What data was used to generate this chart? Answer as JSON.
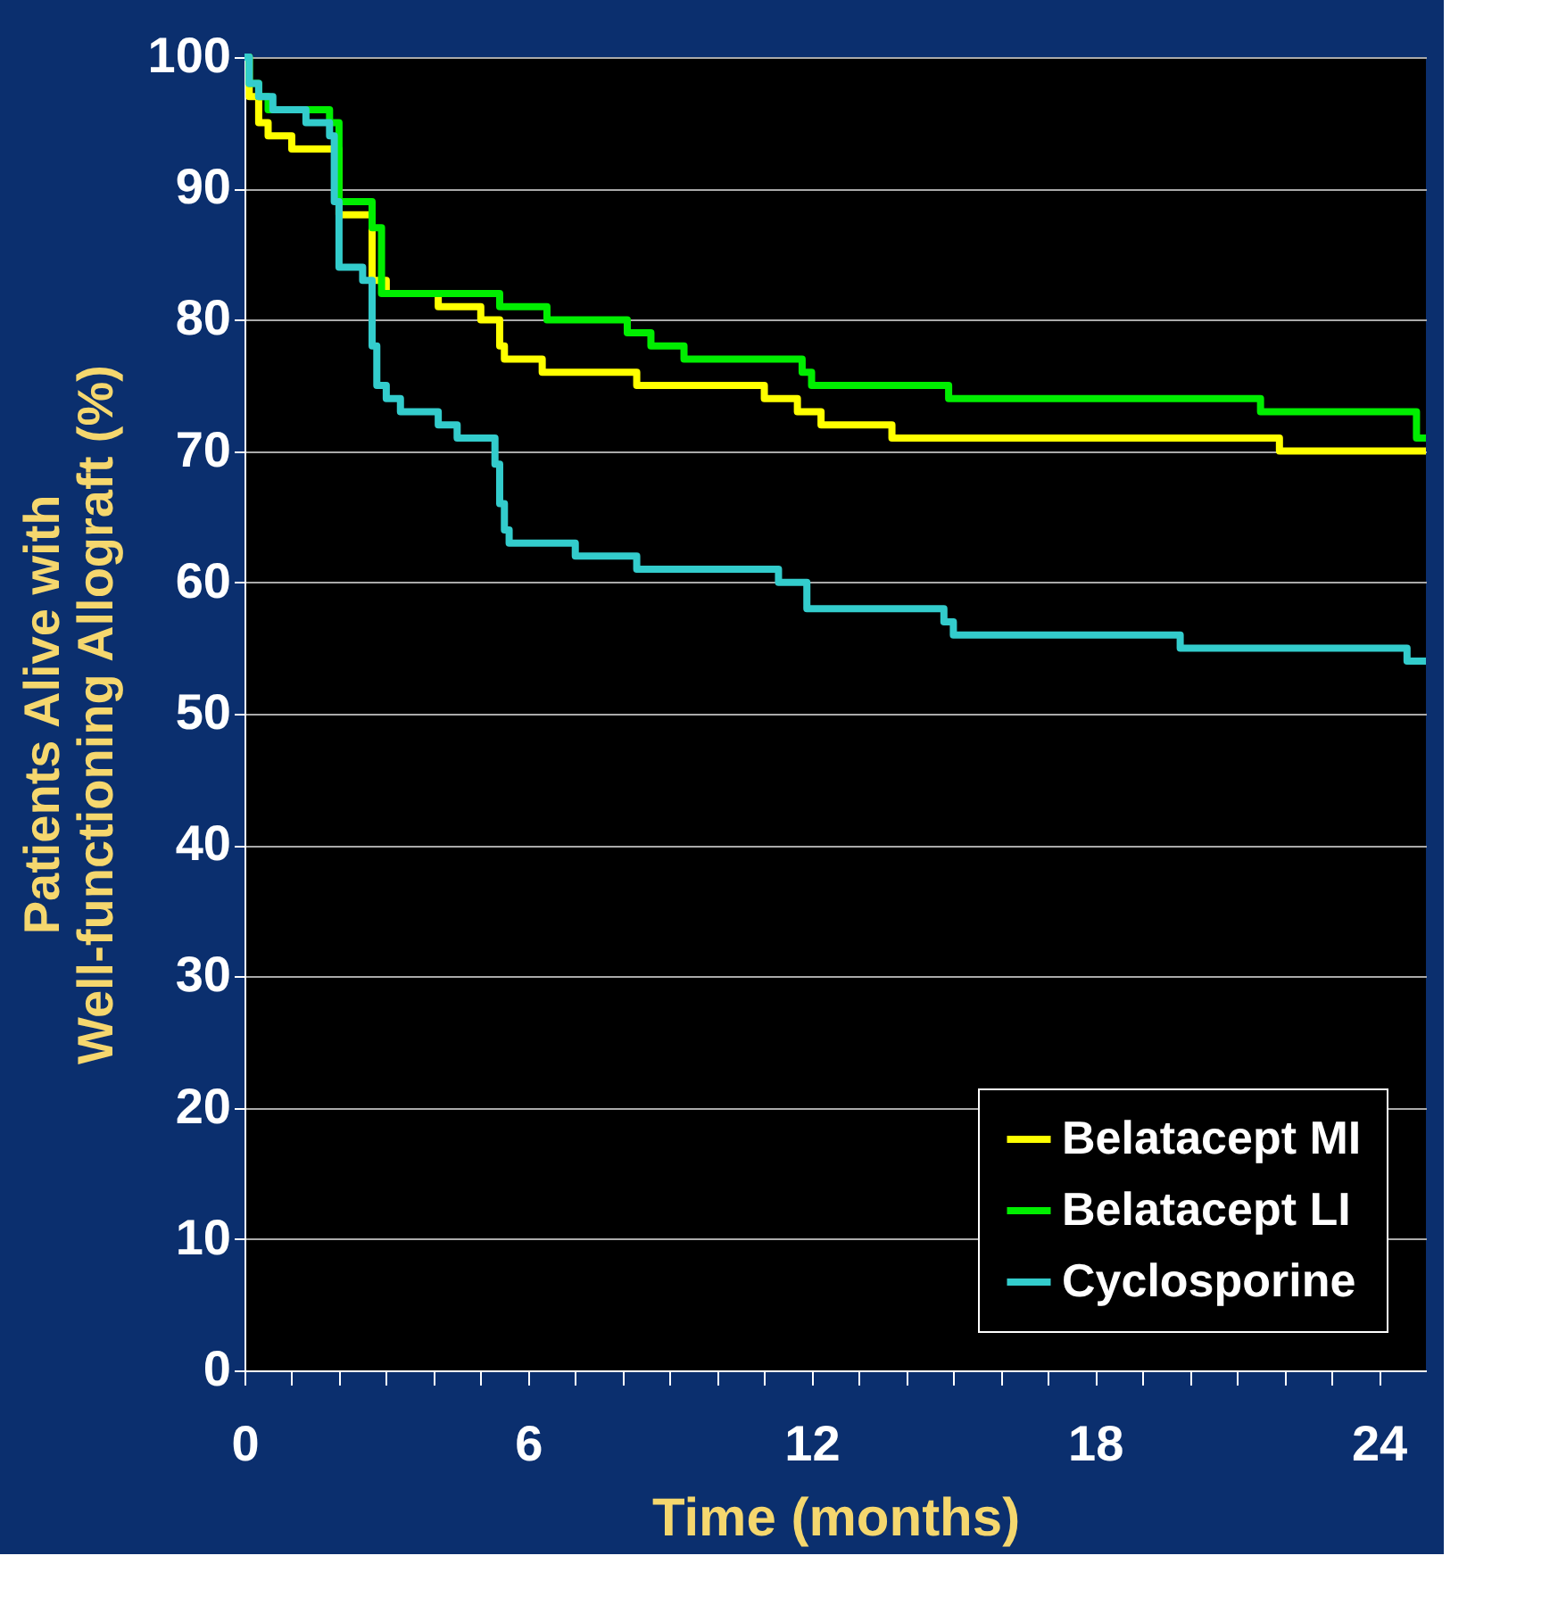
{
  "chart_data": {
    "type": "step",
    "xlabel": "Time (months)",
    "ylabel": "Patients Alive with\nWell-functioning Allograft (%)",
    "xlim": [
      0,
      25
    ],
    "ylim": [
      0,
      100
    ],
    "xticks": [
      0,
      {
        "value": 1,
        "label": null
      },
      {
        "value": 2,
        "label": null
      },
      {
        "value": 3,
        "label": null
      },
      {
        "value": 4,
        "label": null
      },
      {
        "value": 5,
        "label": null
      },
      6,
      {
        "value": 7,
        "label": null
      },
      {
        "value": 8,
        "label": null
      },
      {
        "value": 9,
        "label": null
      },
      {
        "value": 10,
        "label": null
      },
      {
        "value": 11,
        "label": null
      },
      12,
      {
        "value": 13,
        "label": null
      },
      {
        "value": 14,
        "label": null
      },
      {
        "value": 15,
        "label": null
      },
      {
        "value": 16,
        "label": null
      },
      {
        "value": 17,
        "label": null
      },
      18,
      {
        "value": 19,
        "label": null
      },
      {
        "value": 20,
        "label": null
      },
      {
        "value": 21,
        "label": null
      },
      {
        "value": 22,
        "label": null
      },
      {
        "value": 23,
        "label": null
      },
      24
    ],
    "yticks": [
      0,
      10,
      20,
      30,
      40,
      50,
      60,
      70,
      80,
      90,
      100
    ],
    "grid": "y",
    "legend": "bottom right",
    "marker": "none",
    "line_style": "solid",
    "series": [
      {
        "name": "Belatacept MI",
        "color": "#ffff00",
        "x": [
          0,
          0.1,
          0.3,
          0.5,
          1.0,
          2.0,
          2.7,
          3.0,
          4.1,
          5.0,
          5.4,
          5.5,
          6.3,
          8.3,
          11.0,
          11.7,
          12.2,
          13.7,
          21.9,
          25
        ],
        "values": [
          100,
          97,
          95,
          94,
          93,
          88,
          83,
          82,
          81,
          80,
          78,
          77,
          76,
          75,
          74,
          73,
          72,
          71,
          70,
          70
        ]
      },
      {
        "name": "Belatacept LI",
        "color": "#00ee00",
        "x": [
          0,
          0.1,
          0.3,
          0.5,
          1.8,
          2.0,
          2.7,
          2.9,
          5.4,
          6.4,
          8.1,
          8.6,
          9.3,
          11.8,
          12.0,
          14.9,
          21.5,
          24.8,
          25
        ],
        "values": [
          100,
          98,
          97,
          96,
          95,
          89,
          87,
          82,
          81,
          80,
          79,
          78,
          77,
          76,
          75,
          74,
          73,
          71,
          71
        ]
      },
      {
        "name": "Cyclosporine",
        "color": "#33cccc",
        "x": [
          0,
          0.1,
          0.3,
          0.6,
          1.3,
          1.8,
          1.9,
          2.0,
          2.5,
          2.7,
          2.8,
          3.0,
          3.3,
          4.1,
          4.5,
          5.3,
          5.4,
          5.5,
          5.6,
          7.0,
          8.3,
          11.3,
          11.9,
          14.8,
          15.0,
          19.8,
          24.6,
          25
        ],
        "values": [
          100,
          98,
          97,
          96,
          95,
          94,
          89,
          84,
          83,
          78,
          75,
          74,
          73,
          72,
          71,
          69,
          66,
          64,
          63,
          62,
          61,
          60,
          58,
          57,
          56,
          55,
          54,
          54
        ]
      }
    ]
  }
}
